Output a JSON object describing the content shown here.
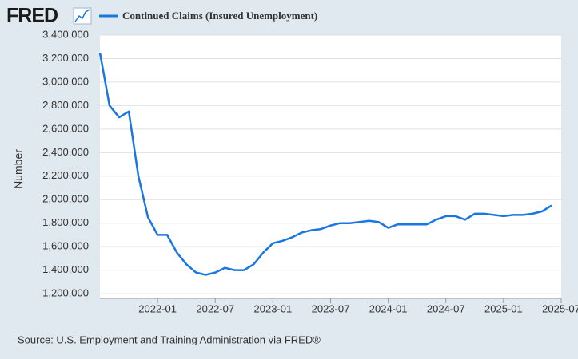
{
  "header": {
    "logo": "FRED"
  },
  "chart_data": {
    "type": "line",
    "y_label": "Number",
    "x": [
      "2021-07",
      "2021-08",
      "2021-09",
      "2021-10",
      "2021-11",
      "2021-12",
      "2022-01",
      "2022-02",
      "2022-03",
      "2022-04",
      "2022-05",
      "2022-06",
      "2022-07",
      "2022-08",
      "2022-09",
      "2022-10",
      "2022-11",
      "2022-12",
      "2023-01",
      "2023-02",
      "2023-03",
      "2023-04",
      "2023-05",
      "2023-06",
      "2023-07",
      "2023-08",
      "2023-09",
      "2023-10",
      "2023-11",
      "2023-12",
      "2024-01",
      "2024-02",
      "2024-03",
      "2024-04",
      "2024-05",
      "2024-06",
      "2024-07",
      "2024-08",
      "2024-09",
      "2024-10",
      "2024-11",
      "2024-12",
      "2025-01",
      "2025-02",
      "2025-03",
      "2025-04",
      "2025-05",
      "2025-06"
    ],
    "series": [
      {
        "name": "Continued Claims (Insured Unemployment)",
        "color": "#1a76e0",
        "values": [
          3250000,
          2800000,
          2700000,
          2750000,
          2200000,
          1850000,
          1700000,
          1700000,
          1550000,
          1450000,
          1380000,
          1360000,
          1380000,
          1420000,
          1400000,
          1400000,
          1450000,
          1550000,
          1630000,
          1650000,
          1680000,
          1720000,
          1740000,
          1750000,
          1780000,
          1800000,
          1800000,
          1810000,
          1820000,
          1810000,
          1760000,
          1790000,
          1790000,
          1790000,
          1790000,
          1830000,
          1860000,
          1860000,
          1830000,
          1880000,
          1880000,
          1870000,
          1860000,
          1870000,
          1870000,
          1880000,
          1900000,
          1950000
        ]
      }
    ],
    "xlim": [
      "2021-07",
      "2025-07"
    ],
    "xticks": [
      "2022-01",
      "2022-07",
      "2023-01",
      "2023-07",
      "2024-01",
      "2024-07",
      "2025-01",
      "2025-07"
    ],
    "ylim": [
      1160000,
      3400000
    ],
    "yticks": [
      {
        "value": 1200000,
        "label": "1,200,000"
      },
      {
        "value": 1400000,
        "label": "1,400,000"
      },
      {
        "value": 1600000,
        "label": "1,600,000"
      },
      {
        "value": 1800000,
        "label": "1,800,000"
      },
      {
        "value": 2000000,
        "label": "2,000,000"
      },
      {
        "value": 2200000,
        "label": "2,200,000"
      },
      {
        "value": 2400000,
        "label": "2,400,000"
      },
      {
        "value": 2600000,
        "label": "2,600,000"
      },
      {
        "value": 2800000,
        "label": "2,800,000"
      },
      {
        "value": 3000000,
        "label": "3,000,000"
      },
      {
        "value": 3200000,
        "label": "3,200,000"
      },
      {
        "value": 3400000,
        "label": "3,400,000"
      }
    ],
    "grid": true
  },
  "footer": {
    "source": "Source: U.S. Employment and Training Administration via FRED®"
  }
}
